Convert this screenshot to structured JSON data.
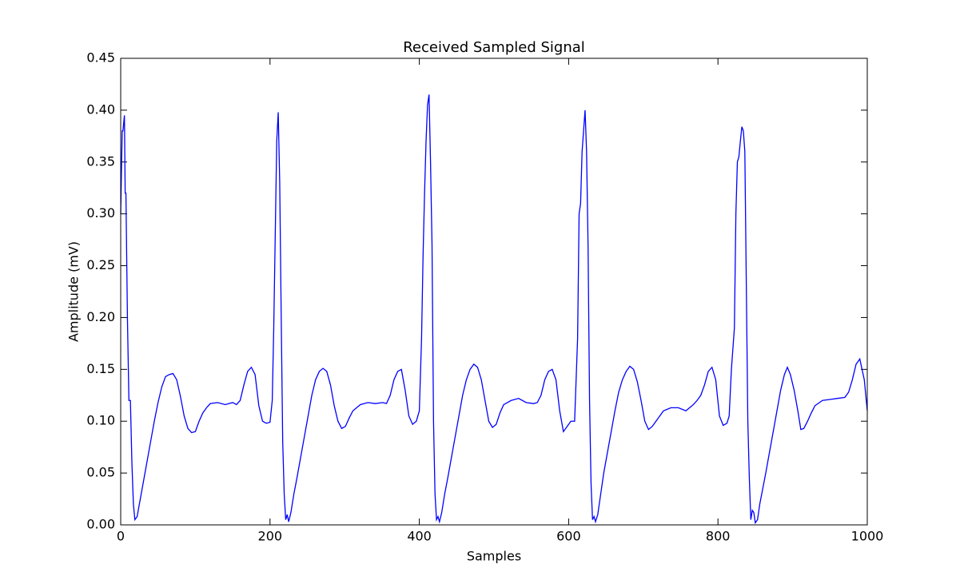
{
  "chart_data": {
    "type": "line",
    "title": "Received Sampled Signal",
    "x_label": "Samples",
    "y_label": "Amplitude (mV)",
    "xlim": [
      0,
      1000
    ],
    "xticks": [
      0,
      200,
      400,
      600,
      800,
      1000
    ],
    "ylim": [
      0,
      0.45
    ],
    "yticks": [
      {
        "value": 0,
        "label": "0.00"
      },
      {
        "value": 0.05,
        "label": "0.05"
      },
      {
        "value": 0.1,
        "label": "0.10"
      },
      {
        "value": 0.15,
        "label": "0.15"
      },
      {
        "value": 0.2,
        "label": "0.20"
      },
      {
        "value": 0.25,
        "label": "0.25"
      },
      {
        "value": 0.3,
        "label": "0.30"
      },
      {
        "value": 0.35,
        "label": "0.35"
      },
      {
        "value": 0.4,
        "label": "0.40"
      },
      {
        "value": 0.45,
        "label": "0.45"
      }
    ],
    "grid": false,
    "series": [
      {
        "color": "#0000ff",
        "x": [
          0,
          2,
          3,
          5,
          6,
          7,
          9,
          11,
          13,
          15,
          17,
          19,
          22,
          25,
          30,
          35,
          40,
          45,
          50,
          55,
          60,
          65,
          70,
          75,
          80,
          85,
          90,
          95,
          100,
          105,
          110,
          115,
          120,
          130,
          140,
          150,
          155,
          160,
          165,
          170,
          175,
          180,
          185,
          190,
          195,
          200,
          203,
          205,
          207,
          209,
          211,
          213,
          215,
          217,
          219,
          221,
          223,
          225,
          228,
          232,
          236,
          241,
          246,
          251,
          256,
          261,
          266,
          271,
          276,
          281,
          286,
          291,
          296,
          301,
          306,
          311,
          321,
          331,
          341,
          351,
          356,
          361,
          366,
          371,
          376,
          381,
          386,
          391,
          396,
          400,
          403,
          405,
          407,
          409,
          411,
          413,
          415,
          417,
          419,
          421,
          423,
          425,
          427,
          430,
          434,
          438,
          443,
          448,
          453,
          458,
          463,
          468,
          473,
          478,
          483,
          488,
          493,
          498,
          503,
          508,
          513,
          523,
          533,
          543,
          553,
          558,
          563,
          568,
          573,
          578,
          583,
          588,
          593,
          598,
          603,
          608,
          612,
          614,
          616,
          618,
          620,
          622,
          624,
          626,
          628,
          630,
          632,
          634,
          636,
          639,
          643,
          647,
          652,
          657,
          662,
          667,
          672,
          677,
          682,
          687,
          692,
          697,
          702,
          707,
          712,
          717,
          722,
          727,
          737,
          747,
          757,
          767,
          772,
          777,
          782,
          787,
          792,
          797,
          802,
          807,
          812,
          815,
          818,
          822,
          824,
          826,
          828,
          830,
          832,
          834,
          836,
          838,
          840,
          842,
          844,
          846,
          848,
          850,
          853,
          856,
          860,
          864,
          869,
          874,
          879,
          884,
          889,
          893,
          897,
          902,
          907,
          911,
          915,
          920,
          925,
          930,
          940,
          950,
          960,
          970,
          975,
          980,
          985,
          990,
          993,
          996,
          998,
          1000
        ],
        "values": [
          0.3,
          0.38,
          0.38,
          0.395,
          0.32,
          0.32,
          0.2,
          0.12,
          0.12,
          0.06,
          0.02,
          0.005,
          0.008,
          0.02,
          0.04,
          0.06,
          0.08,
          0.1,
          0.118,
          0.133,
          0.143,
          0.145,
          0.146,
          0.14,
          0.124,
          0.105,
          0.093,
          0.089,
          0.09,
          0.1,
          0.108,
          0.113,
          0.117,
          0.118,
          0.116,
          0.118,
          0.116,
          0.12,
          0.135,
          0.148,
          0.152,
          0.145,
          0.115,
          0.1,
          0.098,
          0.099,
          0.12,
          0.19,
          0.28,
          0.37,
          0.398,
          0.33,
          0.2,
          0.08,
          0.03,
          0.005,
          0.01,
          0.003,
          0.012,
          0.03,
          0.045,
          0.065,
          0.085,
          0.105,
          0.125,
          0.14,
          0.148,
          0.151,
          0.148,
          0.135,
          0.115,
          0.1,
          0.093,
          0.095,
          0.103,
          0.11,
          0.116,
          0.118,
          0.117,
          0.118,
          0.117,
          0.125,
          0.14,
          0.148,
          0.15,
          0.13,
          0.105,
          0.097,
          0.1,
          0.11,
          0.18,
          0.26,
          0.32,
          0.37,
          0.405,
          0.415,
          0.35,
          0.27,
          0.1,
          0.03,
          0.005,
          0.008,
          0.003,
          0.012,
          0.03,
          0.045,
          0.065,
          0.085,
          0.105,
          0.125,
          0.14,
          0.15,
          0.155,
          0.152,
          0.14,
          0.12,
          0.1,
          0.094,
          0.097,
          0.108,
          0.116,
          0.12,
          0.122,
          0.118,
          0.117,
          0.118,
          0.125,
          0.14,
          0.148,
          0.15,
          0.14,
          0.11,
          0.09,
          0.095,
          0.1,
          0.1,
          0.18,
          0.3,
          0.31,
          0.36,
          0.38,
          0.4,
          0.36,
          0.27,
          0.12,
          0.04,
          0.005,
          0.008,
          0.003,
          0.01,
          0.03,
          0.05,
          0.07,
          0.09,
          0.11,
          0.128,
          0.14,
          0.148,
          0.153,
          0.15,
          0.138,
          0.12,
          0.1,
          0.092,
          0.095,
          0.1,
          0.105,
          0.11,
          0.113,
          0.113,
          0.11,
          0.116,
          0.12,
          0.125,
          0.135,
          0.148,
          0.152,
          0.14,
          0.105,
          0.096,
          0.098,
          0.105,
          0.15,
          0.19,
          0.3,
          0.35,
          0.355,
          0.37,
          0.384,
          0.38,
          0.36,
          0.23,
          0.1,
          0.045,
          0.005,
          0.014,
          0.012,
          0.002,
          0.005,
          0.02,
          0.035,
          0.05,
          0.07,
          0.09,
          0.11,
          0.13,
          0.145,
          0.152,
          0.145,
          0.13,
          0.11,
          0.092,
          0.093,
          0.1,
          0.108,
          0.115,
          0.12,
          0.121,
          0.122,
          0.123,
          0.128,
          0.14,
          0.155,
          0.16,
          0.15,
          0.14,
          0.125,
          0.11
        ]
      }
    ]
  }
}
